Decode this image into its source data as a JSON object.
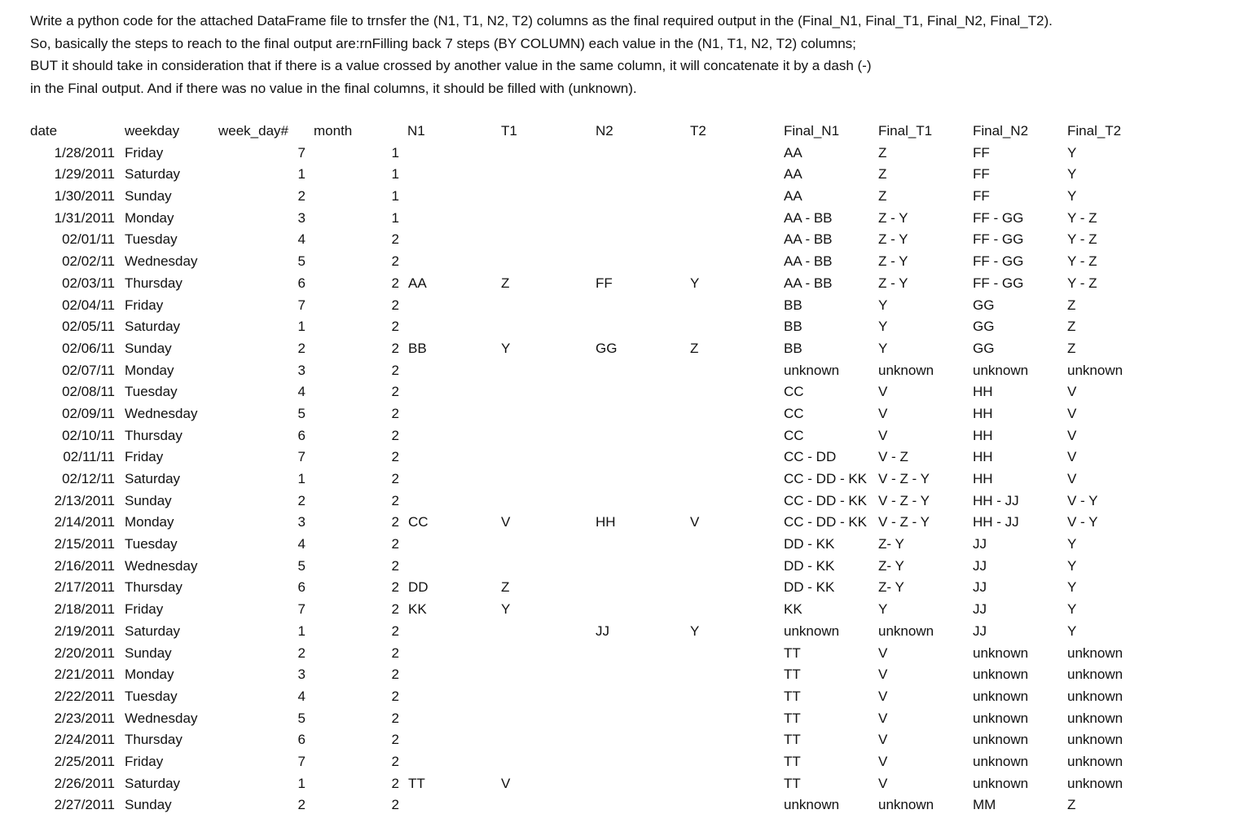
{
  "intro": [
    "Write a python code for the attached DataFrame file to trnsfer the (N1, T1, N2, T2) columns as the final required output in the (Final_N1, Final_T1, Final_N2, Final_T2).",
    "So, basically the steps to reach to the final output are:rnFilling back 7 steps (BY COLUMN) each value in the (N1, T1, N2, T2) columns;",
    "BUT it should take in consideration that if there is a value crossed by another value in the same column, it will concatenate it by a dash (-)",
    "in the Final output. And if there was no value in the final columns, it should be filled with (unknown)."
  ],
  "table": {
    "headers": [
      "date",
      "weekday",
      "week_day#",
      "month",
      "N1",
      "T1",
      "N2",
      "T2",
      "Final_N1",
      "Final_T1",
      "Final_N2",
      "Final_T2"
    ],
    "rows": [
      [
        "1/28/2011",
        "Friday",
        "7",
        "1",
        "",
        "",
        "",
        "",
        "AA",
        "Z",
        "FF",
        "Y"
      ],
      [
        "1/29/2011",
        "Saturday",
        "1",
        "1",
        "",
        "",
        "",
        "",
        "AA",
        "Z",
        "FF",
        "Y"
      ],
      [
        "1/30/2011",
        "Sunday",
        "2",
        "1",
        "",
        "",
        "",
        "",
        "AA",
        "Z",
        "FF",
        "Y"
      ],
      [
        "1/31/2011",
        "Monday",
        "3",
        "1",
        "",
        "",
        "",
        "",
        "AA - BB",
        "Z - Y",
        "FF - GG",
        "Y - Z"
      ],
      [
        "02/01/11",
        "Tuesday",
        "4",
        "2",
        "",
        "",
        "",
        "",
        "AA - BB",
        "Z - Y",
        "FF - GG",
        "Y - Z"
      ],
      [
        "02/02/11",
        "Wednesday",
        "5",
        "2",
        "",
        "",
        "",
        "",
        "AA - BB",
        "Z - Y",
        "FF - GG",
        "Y - Z"
      ],
      [
        "02/03/11",
        "Thursday",
        "6",
        "2",
        "AA",
        "Z",
        "FF",
        "Y",
        "AA - BB",
        "Z - Y",
        "FF - GG",
        "Y - Z"
      ],
      [
        "02/04/11",
        "Friday",
        "7",
        "2",
        "",
        "",
        "",
        "",
        "BB",
        "Y",
        "GG",
        "Z"
      ],
      [
        "02/05/11",
        "Saturday",
        "1",
        "2",
        "",
        "",
        "",
        "",
        "BB",
        "Y",
        "GG",
        "Z"
      ],
      [
        "02/06/11",
        "Sunday",
        "2",
        "2",
        "BB",
        "Y",
        "GG",
        "Z",
        "BB",
        "Y",
        "GG",
        "Z"
      ],
      [
        "02/07/11",
        "Monday",
        "3",
        "2",
        "",
        "",
        "",
        "",
        "unknown",
        "unknown",
        "unknown",
        "unknown"
      ],
      [
        "02/08/11",
        "Tuesday",
        "4",
        "2",
        "",
        "",
        "",
        "",
        "CC",
        "V",
        "HH",
        "V"
      ],
      [
        "02/09/11",
        "Wednesday",
        "5",
        "2",
        "",
        "",
        "",
        "",
        "CC",
        "V",
        "HH",
        "V"
      ],
      [
        "02/10/11",
        "Thursday",
        "6",
        "2",
        "",
        "",
        "",
        "",
        "CC",
        "V",
        "HH",
        "V"
      ],
      [
        "02/11/11",
        "Friday",
        "7",
        "2",
        "",
        "",
        "",
        "",
        "CC - DD",
        "V - Z",
        "HH",
        "V"
      ],
      [
        "02/12/11",
        "Saturday",
        "1",
        "2",
        "",
        "",
        "",
        "",
        "CC - DD - KK",
        "V - Z - Y",
        "HH",
        "V"
      ],
      [
        "2/13/2011",
        "Sunday",
        "2",
        "2",
        "",
        "",
        "",
        "",
        "CC - DD - KK",
        "V - Z - Y",
        "HH - JJ",
        "V - Y"
      ],
      [
        "2/14/2011",
        "Monday",
        "3",
        "2",
        "CC",
        "V",
        "HH",
        "V",
        "CC - DD - KK",
        "V - Z - Y",
        "HH - JJ",
        "V - Y"
      ],
      [
        "2/15/2011",
        "Tuesday",
        "4",
        "2",
        "",
        "",
        "",
        "",
        "DD - KK",
        "Z- Y",
        "JJ",
        "Y"
      ],
      [
        "2/16/2011",
        "Wednesday",
        "5",
        "2",
        "",
        "",
        "",
        "",
        "DD - KK",
        "Z- Y",
        "JJ",
        "Y"
      ],
      [
        "2/17/2011",
        "Thursday",
        "6",
        "2",
        "DD",
        "Z",
        "",
        "",
        "DD - KK",
        "Z- Y",
        "JJ",
        "Y"
      ],
      [
        "2/18/2011",
        "Friday",
        "7",
        "2",
        "KK",
        "Y",
        "",
        "",
        "KK",
        "Y",
        "JJ",
        "Y"
      ],
      [
        "2/19/2011",
        "Saturday",
        "1",
        "2",
        "",
        "",
        "JJ",
        "Y",
        "unknown",
        "unknown",
        "JJ",
        "Y"
      ],
      [
        "2/20/2011",
        "Sunday",
        "2",
        "2",
        "",
        "",
        "",
        "",
        "TT",
        "V",
        "unknown",
        "unknown"
      ],
      [
        "2/21/2011",
        "Monday",
        "3",
        "2",
        "",
        "",
        "",
        "",
        "TT",
        "V",
        "unknown",
        "unknown"
      ],
      [
        "2/22/2011",
        "Tuesday",
        "4",
        "2",
        "",
        "",
        "",
        "",
        "TT",
        "V",
        "unknown",
        "unknown"
      ],
      [
        "2/23/2011",
        "Wednesday",
        "5",
        "2",
        "",
        "",
        "",
        "",
        "TT",
        "V",
        "unknown",
        "unknown"
      ],
      [
        "2/24/2011",
        "Thursday",
        "6",
        "2",
        "",
        "",
        "",
        "",
        "TT",
        "V",
        "unknown",
        "unknown"
      ],
      [
        "2/25/2011",
        "Friday",
        "7",
        "2",
        "",
        "",
        "",
        "",
        "TT",
        "V",
        "unknown",
        "unknown"
      ],
      [
        "2/26/2011",
        "Saturday",
        "1",
        "2",
        "TT",
        "V",
        "",
        "",
        "TT",
        "V",
        "unknown",
        "unknown"
      ],
      [
        "2/27/2011",
        "Sunday",
        "2",
        "2",
        "",
        "",
        "",
        "",
        "unknown",
        "unknown",
        "MM",
        "Z"
      ]
    ]
  }
}
